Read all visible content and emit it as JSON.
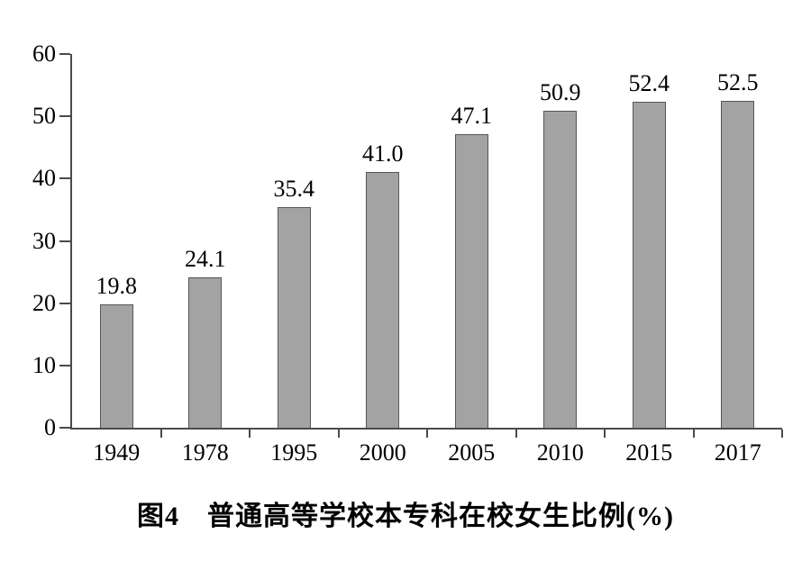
{
  "chart_data": {
    "type": "bar",
    "categories": [
      "1949",
      "1978",
      "1995",
      "2000",
      "2005",
      "2010",
      "2015",
      "2017"
    ],
    "values": [
      19.8,
      24.1,
      35.4,
      41.0,
      47.1,
      50.9,
      52.4,
      52.5
    ],
    "value_labels": [
      "19.8",
      "24.1",
      "35.4",
      "41.0",
      "47.1",
      "50.9",
      "52.4",
      "52.5"
    ],
    "title": "图4　普通高等学校本专科在校女生比例(%)",
    "xlabel": "",
    "ylabel": "",
    "ylim": [
      0,
      60
    ],
    "yticks": [
      0,
      10,
      20,
      30,
      40,
      50,
      60
    ],
    "ytick_labels": [
      "0",
      "10",
      "20",
      "30",
      "40",
      "50",
      "60"
    ],
    "grid": false,
    "legend": null,
    "colors": {
      "bar_fill": "#a3a3a3",
      "bar_border": "#565656",
      "axis": "#4a4a4a",
      "text": "#000000",
      "background": "#ffffff"
    }
  }
}
